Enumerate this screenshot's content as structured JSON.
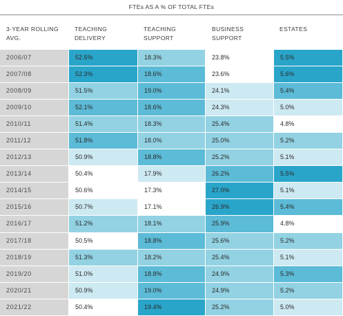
{
  "chart_data": {
    "type": "table",
    "title": "FTEs AS A % OF TOTAL FTEs",
    "columns": [
      "3-YEAR ROLLING AVG.",
      "TEACHING DELIVERY",
      "TEACHING SUPPORT",
      "BUSINESS SUPPORT",
      "ESTATES"
    ],
    "header_lines": [
      [
        "3-YEAR ROLLING",
        "AVG."
      ],
      [
        "TEACHING",
        "DELIVERY"
      ],
      [
        "TEACHING",
        "SUPPORT"
      ],
      [
        "BUSINESS",
        "SUPPORT"
      ],
      [
        "ESTATES",
        ""
      ]
    ],
    "rows": [
      {
        "year": "2006/07",
        "values": [
          "52.5%",
          "18.3%",
          "23.8%",
          "5.5%"
        ]
      },
      {
        "year": "2007/08",
        "values": [
          "52.3%",
          "18.6%",
          "23.6%",
          "5.6%"
        ]
      },
      {
        "year": "2008/09",
        "values": [
          "51.5%",
          "19.0%",
          "24.1%",
          "5.4%"
        ]
      },
      {
        "year": "2009/10",
        "values": [
          "52.1%",
          "18.6%",
          "24.3%",
          "5.0%"
        ]
      },
      {
        "year": "2010/11",
        "values": [
          "51.4%",
          "18.3%",
          "25.4%",
          "4.8%"
        ]
      },
      {
        "year": "2011/12",
        "values": [
          "51.8%",
          "18.0%",
          "25.0%",
          "5.2%"
        ]
      },
      {
        "year": "2012/13",
        "values": [
          "50.9%",
          "18.8%",
          "25.2%",
          "5.1%"
        ]
      },
      {
        "year": "2013/14",
        "values": [
          "50.4%",
          "17.9%",
          "26.2%",
          "5.5%"
        ]
      },
      {
        "year": "2014/15",
        "values": [
          "50.6%",
          "17.3%",
          "27.0%",
          "5.1%"
        ]
      },
      {
        "year": "2015/16",
        "values": [
          "50.7%",
          "17.1%",
          "26.9%",
          "5.4%"
        ]
      },
      {
        "year": "2016/17",
        "values": [
          "51.2%",
          "18.1%",
          "25.9%",
          "4.8%"
        ]
      },
      {
        "year": "2017/18",
        "values": [
          "50.5%",
          "18.8%",
          "25.6%",
          "5.2%"
        ]
      },
      {
        "year": "2018/19",
        "values": [
          "51.3%",
          "18.2%",
          "25.4%",
          "5.1%"
        ]
      },
      {
        "year": "2019/20",
        "values": [
          "51.0%",
          "18.8%",
          "24.9%",
          "5.3%"
        ]
      },
      {
        "year": "2020/21",
        "values": [
          "50.9%",
          "19.0%",
          "24.9%",
          "5.2%"
        ]
      },
      {
        "year": "2021/22",
        "values": [
          "50.4%",
          "19.4%",
          "25.2%",
          "5.0%"
        ]
      }
    ],
    "heat_colors": [
      "#ffffff",
      "#cde9f2",
      "#92d2e3",
      "#5cbbd7",
      "#2aa5ca"
    ]
  }
}
